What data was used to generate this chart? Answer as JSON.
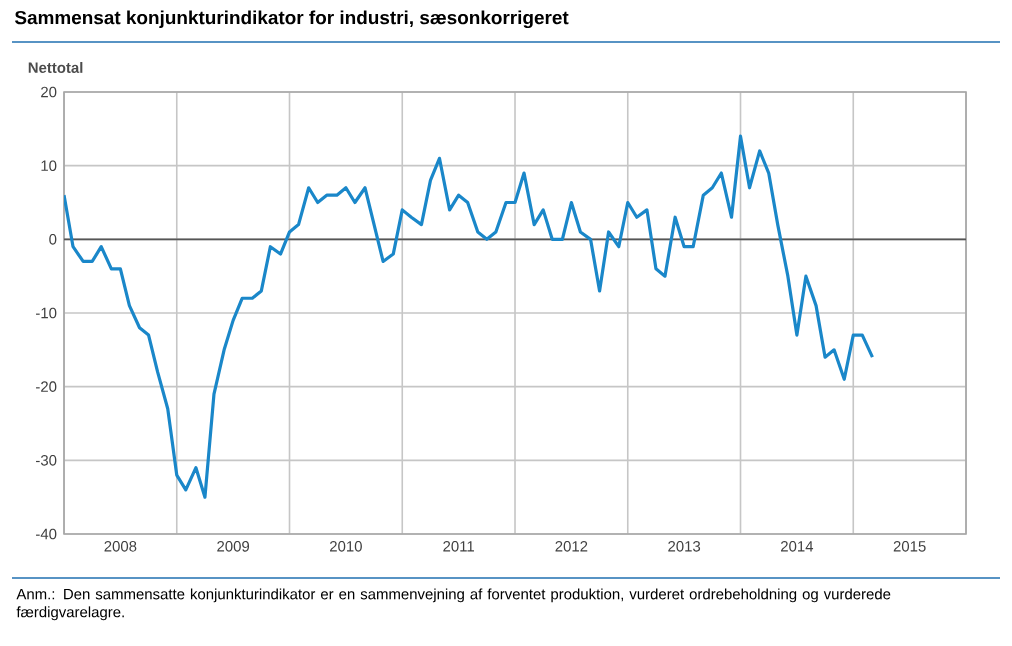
{
  "chart_data": {
    "type": "line",
    "title": "Sammensat konjunkturindikator for industri, sæsonkorrigeret",
    "ylabel": "Nettotal",
    "annotations": [
      "Anm.: Den sammensatte konjunkturindikator er en sammenvejning af forventet produktion, vurderet ordrebeholdning og vurderede færdigvarelagre."
    ],
    "x": [
      "2008-01",
      "2008-02",
      "2008-03",
      "2008-04",
      "2008-05",
      "2008-06",
      "2008-07",
      "2008-08",
      "2008-09",
      "2008-10",
      "2008-11",
      "2008-12",
      "2009-01",
      "2009-02",
      "2009-03",
      "2009-04",
      "2009-05",
      "2009-06",
      "2009-07",
      "2009-08",
      "2009-09",
      "2009-10",
      "2009-11",
      "2009-12",
      "2010-01",
      "2010-02",
      "2010-03",
      "2010-04",
      "2010-05",
      "2010-06",
      "2010-07",
      "2010-08",
      "2010-09",
      "2010-10",
      "2010-11",
      "2010-12",
      "2011-01",
      "2011-02",
      "2011-03",
      "2011-04",
      "2011-05",
      "2011-06",
      "2011-07",
      "2011-08",
      "2011-09",
      "2011-10",
      "2011-11",
      "2011-12",
      "2012-01",
      "2012-02",
      "2012-03",
      "2012-04",
      "2012-05",
      "2012-06",
      "2012-07",
      "2012-08",
      "2012-09",
      "2012-10",
      "2012-11",
      "2012-12",
      "2013-01",
      "2013-02",
      "2013-03",
      "2013-04",
      "2013-05",
      "2013-06",
      "2013-07",
      "2013-08",
      "2013-09",
      "2013-10",
      "2013-11",
      "2013-12",
      "2014-01",
      "2014-02",
      "2014-03",
      "2014-04",
      "2014-05",
      "2014-06",
      "2014-07",
      "2014-08",
      "2014-09",
      "2014-10",
      "2014-11",
      "2014-12",
      "2015-01",
      "2015-02",
      "2015-03"
    ],
    "series": [
      {
        "color": "#1a87c9",
        "values": [
          6,
          -1,
          -3,
          -3,
          -1,
          -4,
          -4,
          -9,
          -12,
          -13,
          -18,
          -23,
          -32,
          -34,
          -31,
          -35,
          -21,
          -15,
          -11,
          -8,
          -8,
          -7,
          -1,
          -2,
          1,
          2,
          7,
          5,
          6,
          6,
          7,
          5,
          7,
          2,
          -3,
          -2,
          4,
          3,
          2,
          8,
          11,
          4,
          6,
          5,
          1,
          0,
          1,
          5,
          5,
          9,
          2,
          4,
          0,
          0,
          5,
          1,
          0,
          -7,
          1,
          -1,
          5,
          3,
          4,
          -4,
          -5,
          3,
          -1,
          -1,
          6,
          7,
          9,
          3,
          14,
          7,
          12,
          9,
          2,
          -5,
          -13,
          -5,
          -9,
          -16,
          -15,
          -19,
          -13,
          -13,
          -16
        ]
      }
    ],
    "xlim": [
      "2008-01-01",
      "2016-01-01"
    ],
    "xticks": [
      {
        "value": "2008-07-01",
        "label": "2008"
      },
      {
        "value": "2009-07-01",
        "label": "2009"
      },
      {
        "value": "2010-07-01",
        "label": "2010"
      },
      {
        "value": "2011-07-01",
        "label": "2011"
      },
      {
        "value": "2012-07-01",
        "label": "2012"
      },
      {
        "value": "2013-07-01",
        "label": "2013"
      },
      {
        "value": "2014-07-01",
        "label": "2014"
      },
      {
        "value": "2015-07-01",
        "label": "2015"
      }
    ],
    "ylim": [
      -40,
      20
    ],
    "yticks": [
      -40,
      -30,
      -20,
      -10,
      0,
      10,
      20
    ],
    "ref_lines": [
      {
        "axis": "y",
        "value": 0,
        "color": "#555555"
      }
    ],
    "grid": true,
    "marker": "none",
    "line_style": "solid"
  }
}
